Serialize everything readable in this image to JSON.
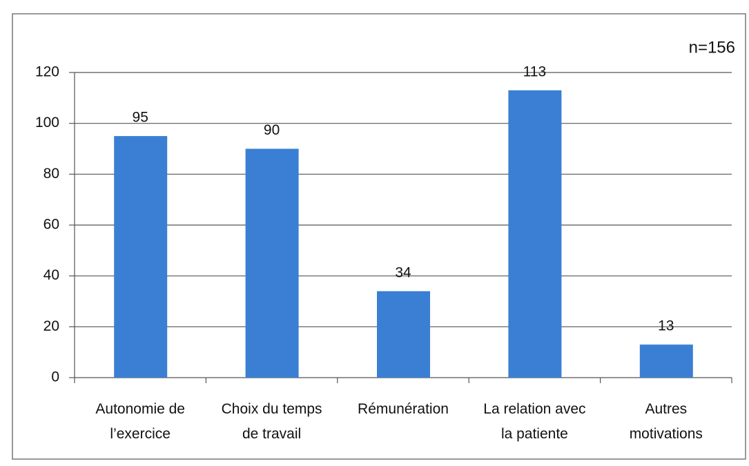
{
  "chart_data": {
    "type": "bar",
    "annotation": "n=156",
    "categories": [
      "Autonomie de l’exercice",
      "Choix du temps de travail",
      "Rémunération",
      "La relation avec la patiente",
      "Autres motivations"
    ],
    "values": [
      95,
      90,
      34,
      113,
      13
    ],
    "color": "#3a7fd3",
    "ylim": [
      0,
      120
    ],
    "yticks": [
      0,
      20,
      40,
      60,
      80,
      100,
      120
    ],
    "grid": true
  }
}
